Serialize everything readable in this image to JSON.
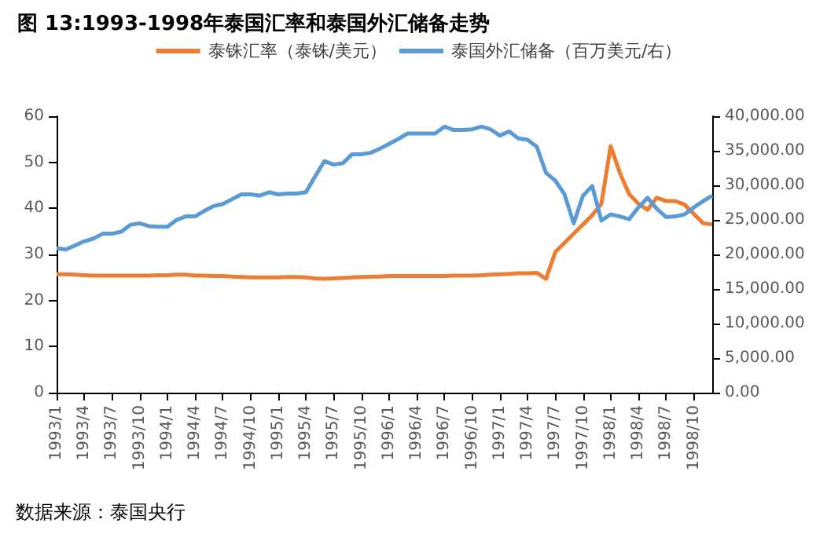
{
  "chart_data": {
    "type": "line",
    "title": "图 13:1993-1998年泰国汇率和泰国外汇储备走势",
    "categories": [
      "1993/1",
      null,
      null,
      "1993/4",
      null,
      null,
      "1993/7",
      null,
      null,
      "1993/10",
      null,
      null,
      "1994/1",
      null,
      null,
      "1994/4",
      null,
      null,
      "1994/7",
      null,
      null,
      "1994/10",
      null,
      null,
      "1995/1",
      null,
      null,
      "1995/4",
      null,
      null,
      "1995/7",
      null,
      null,
      "1995/10",
      null,
      null,
      "1996/1",
      null,
      null,
      "1996/4",
      null,
      null,
      "1996/7",
      null,
      null,
      "1996/10",
      null,
      null,
      "1997/1",
      null,
      null,
      "1997/4",
      null,
      null,
      "1997/7",
      null,
      null,
      "1997/10",
      null,
      null,
      "1998/1",
      null,
      null,
      "1998/4",
      null,
      null,
      "1998/7",
      null,
      null,
      "1998/10",
      null,
      null
    ],
    "series": [
      {
        "name": "泰铢汇率（泰铢/美元）",
        "color": "#ed7d31",
        "values": [
          25.7,
          25.7,
          25.6,
          25.5,
          25.4,
          25.4,
          25.4,
          25.4,
          25.4,
          25.4,
          25.4,
          25.5,
          25.5,
          25.6,
          25.6,
          25.4,
          25.4,
          25.3,
          25.3,
          25.2,
          25.1,
          25.0,
          25.0,
          25.0,
          25.0,
          25.1,
          25.1,
          25.0,
          24.8,
          24.7,
          24.8,
          24.9,
          25.0,
          25.1,
          25.2,
          25.2,
          25.3,
          25.3,
          25.3,
          25.3,
          25.3,
          25.3,
          25.3,
          25.4,
          25.4,
          25.4,
          25.5,
          25.6,
          25.7,
          25.8,
          25.9,
          25.9,
          26.0,
          24.7,
          30.5,
          32.5,
          34.5,
          36.5,
          38.5,
          41.0,
          53.5,
          47.7,
          43.1,
          41.0,
          39.7,
          42.3,
          41.6,
          41.6,
          40.8,
          38.8,
          36.8,
          36.5
        ]
      },
      {
        "name": "泰国外汇储备（百万美元/右）",
        "color": "#5b9bd5",
        "axis": "y2",
        "values": [
          20900,
          20700,
          21300,
          21900,
          22300,
          23000,
          23000,
          23300,
          24300,
          24500,
          24100,
          24000,
          24000,
          25000,
          25500,
          25500,
          26300,
          27000,
          27300,
          28000,
          28700,
          28700,
          28500,
          29000,
          28700,
          28800,
          28800,
          29000,
          31300,
          33500,
          33000,
          33200,
          34500,
          34500,
          34700,
          35300,
          36000,
          36700,
          37500,
          37500,
          37500,
          37500,
          38500,
          38000,
          38000,
          38100,
          38500,
          38100,
          37200,
          37800,
          36800,
          36600,
          35600,
          31800,
          30700,
          28700,
          24500,
          28500,
          29900,
          24900,
          25800,
          25500,
          25100,
          26800,
          28200,
          26600,
          25400,
          25500,
          25800,
          26800,
          27700,
          28500
        ]
      }
    ],
    "ylim": [
      0,
      60
    ],
    "yticks": [
      0,
      10,
      20,
      30,
      40,
      50,
      60
    ],
    "y2lim": [
      0,
      40000
    ],
    "y2ticks": [
      {
        "value": 0,
        "label": "0.00"
      },
      {
        "value": 5000,
        "label": "5,000.00"
      },
      {
        "value": 10000,
        "label": "10,000.00"
      },
      {
        "value": 15000,
        "label": "15,000.00"
      },
      {
        "value": 20000,
        "label": "20,000.00"
      },
      {
        "value": 25000,
        "label": "25,000.00"
      },
      {
        "value": 30000,
        "label": "30,000.00"
      },
      {
        "value": 35000,
        "label": "35,000.00"
      },
      {
        "value": 40000,
        "label": "40,000.00"
      }
    ],
    "grid": false,
    "legend": "top",
    "marker": "none",
    "line_style": "solid",
    "annotations": [
      "数据来源：泰国央行"
    ]
  }
}
